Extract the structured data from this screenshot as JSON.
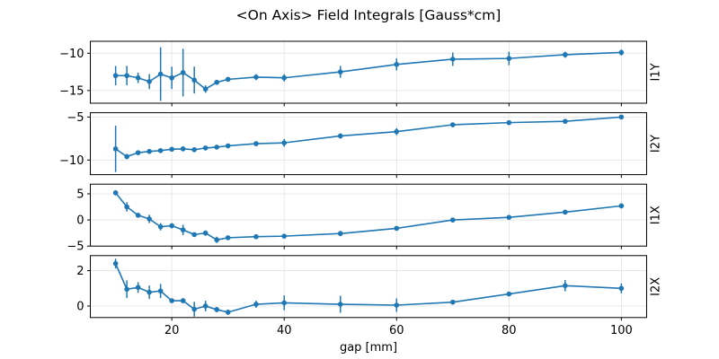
{
  "figure": {
    "background": "#ffffff"
  },
  "chart_data": {
    "type": "line",
    "title": "<On Axis> Field Integrals [Gauss*cm]",
    "xlabel": "gap [mm]",
    "grid": true,
    "legend_position": "none",
    "line_color": "#1f77b4",
    "grid_color": "#e3e3e3",
    "frame_color": "#000000",
    "marker": "circle",
    "error_bars": true,
    "x": [
      10,
      12,
      14,
      16,
      18,
      20,
      22,
      24,
      26,
      28,
      30,
      35,
      40,
      50,
      60,
      70,
      80,
      90,
      100
    ],
    "xticks": [
      20,
      40,
      60,
      80,
      100
    ],
    "xlim": [
      5.5,
      104.5
    ],
    "panels": [
      {
        "label": "I1Y",
        "yticks": [
          -10,
          -15
        ],
        "ylim": [
          -16.7,
          -8.4
        ],
        "y": [
          -13.0,
          -13.0,
          -13.3,
          -13.8,
          -12.8,
          -13.3,
          -12.6,
          -13.6,
          -14.8,
          -13.9,
          -13.5,
          -13.2,
          -13.3,
          -12.5,
          -11.5,
          -10.8,
          -10.7,
          -10.2,
          -9.9
        ],
        "yerr": [
          1.3,
          1.3,
          0.7,
          1.0,
          3.6,
          1.5,
          3.2,
          1.8,
          0.5,
          0.3,
          0.2,
          0.4,
          0.5,
          0.8,
          0.8,
          0.9,
          0.9,
          0.4,
          0.4
        ]
      },
      {
        "label": "I2Y",
        "yticks": [
          -5,
          -10
        ],
        "ylim": [
          -11.7,
          -4.5
        ],
        "y": [
          -8.7,
          -9.6,
          -9.15,
          -9.0,
          -8.9,
          -8.75,
          -8.7,
          -8.8,
          -8.6,
          -8.5,
          -8.35,
          -8.1,
          -8.0,
          -7.2,
          -6.7,
          -5.9,
          -5.65,
          -5.5,
          -5.0
        ],
        "yerr": [
          2.7,
          0.3,
          0.2,
          0.2,
          0.2,
          0.2,
          0.2,
          0.2,
          0.2,
          0.2,
          0.2,
          0.2,
          0.45,
          0.3,
          0.4,
          0.25,
          0.2,
          0.2,
          0.25
        ]
      },
      {
        "label": "I1X",
        "yticks": [
          5,
          0,
          -5
        ],
        "ylim": [
          -5.0,
          6.85
        ],
        "y": [
          5.2,
          2.5,
          0.9,
          0.2,
          -1.3,
          -1.1,
          -1.9,
          -2.8,
          -2.5,
          -3.8,
          -3.4,
          -3.2,
          -3.1,
          -2.6,
          -1.6,
          0.0,
          0.5,
          1.5,
          2.7
        ],
        "yerr": [
          0.5,
          0.9,
          0.4,
          0.8,
          0.7,
          0.5,
          1.0,
          0.4,
          0.5,
          0.6,
          0.4,
          0.3,
          0.4,
          0.5,
          0.3,
          0.3,
          0.3,
          0.4,
          0.5
        ]
      },
      {
        "label": "I2X",
        "yticks": [
          2,
          0
        ],
        "ylim": [
          -0.65,
          2.85
        ],
        "y": [
          2.4,
          0.95,
          1.05,
          0.78,
          0.85,
          0.3,
          0.3,
          -0.18,
          0.0,
          -0.2,
          -0.35,
          0.1,
          0.18,
          0.1,
          0.05,
          0.22,
          0.68,
          1.15,
          1.0
        ],
        "yerr": [
          0.28,
          0.5,
          0.3,
          0.38,
          0.4,
          0.12,
          0.15,
          0.42,
          0.3,
          0.15,
          0.15,
          0.2,
          0.42,
          0.48,
          0.38,
          0.12,
          0.12,
          0.32,
          0.28
        ]
      }
    ]
  }
}
